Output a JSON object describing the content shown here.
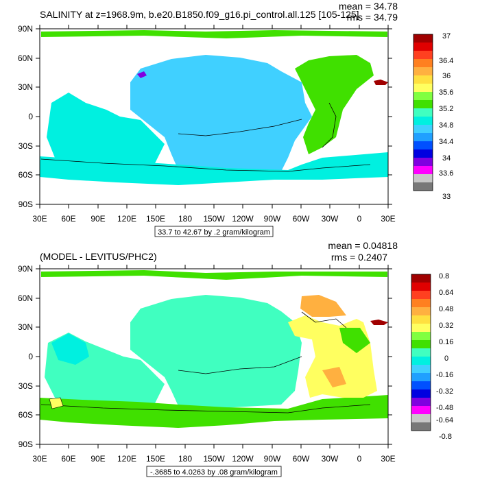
{
  "panels": [
    {
      "title": "SALINITY at z=1968.9m, b.e20.B1850.f09_g16.pi_control.all.125 [105-125]",
      "stats": {
        "mean": "mean = 34.78",
        "rms": "rms = 34.79"
      },
      "range_note": "33.7 to 42.67 by .2 gram/kilogram",
      "lat_labels": [
        "90N",
        "60N",
        "30N",
        "0",
        "30S",
        "60S",
        "90S"
      ],
      "lon_labels": [
        "30E",
        "60E",
        "90E",
        "120E",
        "150E",
        "180",
        "150W",
        "120W",
        "90W",
        "60W",
        "30W",
        "0",
        "30E"
      ],
      "colorbar": {
        "labels": [
          "37",
          "36.4",
          "36",
          "35.6",
          "35.2",
          "34.8",
          "34.4",
          "34",
          "33.6",
          "33"
        ],
        "colors": [
          "#a00000",
          "#e00000",
          "#ff4020",
          "#ff8020",
          "#ffb040",
          "#ffe040",
          "#ffff60",
          "#80ff40",
          "#40e000",
          "#40ffc0",
          "#00f0e0",
          "#40d0ff",
          "#20a0ff",
          "#0050ff",
          "#0000e0",
          "#8000e0",
          "#ff00ff",
          "#c8c8c8",
          "#787878"
        ]
      }
    },
    {
      "title": "(MODEL - LEVITUS/PHC2)",
      "stats": {
        "mean": "mean = 0.04818",
        "rms": "rms = 0.2407"
      },
      "range_note": "-.3685 to 4.0263 by .08 gram/kilogram",
      "lat_labels": [
        "90N",
        "60N",
        "30N",
        "0",
        "30S",
        "60S",
        "90S"
      ],
      "lon_labels": [
        "30E",
        "60E",
        "90E",
        "120E",
        "150E",
        "180",
        "150W",
        "120W",
        "90W",
        "60W",
        "30W",
        "0",
        "30E"
      ],
      "colorbar": {
        "labels": [
          "0.8",
          "0.64",
          "0.48",
          "0.32",
          "0.16",
          "0",
          "-0.16",
          "-0.32",
          "-0.48",
          "-0.64",
          "-0.8"
        ],
        "colors": [
          "#a00000",
          "#e00000",
          "#ff4020",
          "#ff8020",
          "#ffb040",
          "#ffe040",
          "#ffff60",
          "#80ff40",
          "#40e000",
          "#40ffc0",
          "#00f0e0",
          "#40d0ff",
          "#20a0ff",
          "#0050ff",
          "#0000e0",
          "#8000e0",
          "#ff00ff",
          "#c8c8c8",
          "#787878"
        ]
      }
    }
  ]
}
